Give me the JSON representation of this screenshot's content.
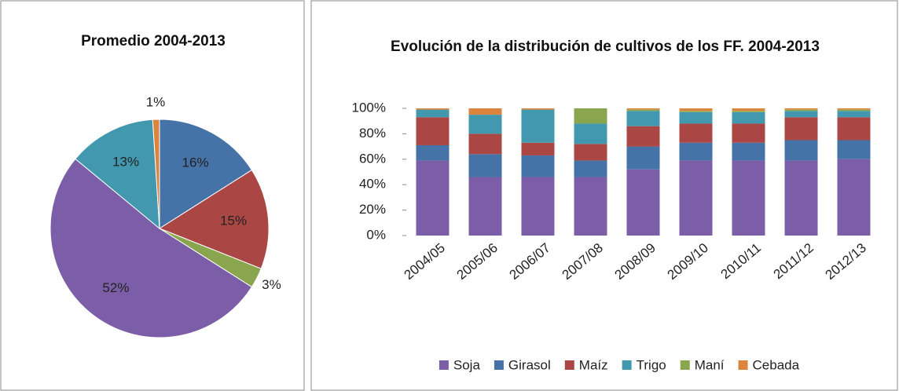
{
  "chart_data": [
    {
      "type": "pie",
      "title": "Promedio 2004-2013",
      "categories": [
        "Girasol",
        "Maíz",
        "Maní",
        "Soja",
        "Trigo",
        "Cebada"
      ],
      "values": [
        16,
        15,
        3,
        52,
        13,
        1
      ],
      "value_labels": [
        "16%",
        "15%",
        "3%",
        "52%",
        "13%",
        "1%"
      ],
      "colors": [
        "#4572a7",
        "#aa4643",
        "#89a54e",
        "#7b5ea7",
        "#4198af",
        "#db843d"
      ]
    },
    {
      "type": "bar",
      "stacked": true,
      "title": "Evolución de la distribución de cultivos de los FF. 2004-2013",
      "categories": [
        "2004/05",
        "2005/06",
        "2006/07",
        "2007/08",
        "2008/09",
        "2009/10",
        "2010/11",
        "2011/12",
        "2012/13"
      ],
      "series": [
        {
          "name": "Soja",
          "color": "#7b5ea7",
          "values": [
            59,
            46,
            46,
            46,
            52,
            59,
            59,
            59,
            60
          ]
        },
        {
          "name": "Girasol",
          "color": "#4572a7",
          "values": [
            12,
            18,
            17,
            13,
            18,
            14,
            14,
            16,
            15
          ]
        },
        {
          "name": "Maíz",
          "color": "#aa4643",
          "values": [
            22,
            16,
            10,
            13,
            16,
            15,
            15,
            18,
            18
          ]
        },
        {
          "name": "Trigo",
          "color": "#4198af",
          "values": [
            6,
            15,
            26,
            16,
            12,
            9,
            9,
            5,
            5
          ]
        },
        {
          "name": "Maní",
          "color": "#89a54e",
          "values": [
            0,
            0,
            0,
            12,
            1,
            1,
            1,
            1,
            1
          ]
        },
        {
          "name": "Cebada",
          "color": "#db843d",
          "values": [
            1,
            5,
            1,
            0,
            1,
            2,
            2,
            1,
            1
          ]
        }
      ],
      "ylim": [
        0,
        100
      ],
      "yticks": [
        {
          "value": 0,
          "label": "0%"
        },
        {
          "value": 20,
          "label": "20%"
        },
        {
          "value": 40,
          "label": "40%"
        },
        {
          "value": 60,
          "label": "60%"
        },
        {
          "value": 80,
          "label": "80%"
        },
        {
          "value": 100,
          "label": "100%"
        }
      ],
      "legend": "bottom"
    }
  ]
}
